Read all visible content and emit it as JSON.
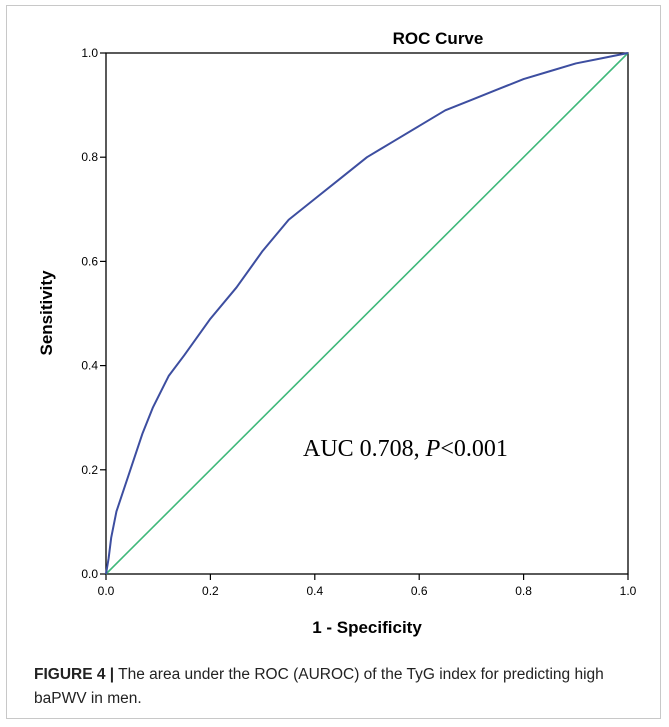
{
  "chart_data": {
    "type": "line",
    "title": "ROC Curve",
    "xlabel": "1 - Specificity",
    "ylabel": "Sensitivity",
    "xlim": [
      0.0,
      1.0
    ],
    "ylim": [
      0.0,
      1.0
    ],
    "x_ticks": [
      "0.0",
      "0.2",
      "0.4",
      "0.6",
      "0.8",
      "1.0"
    ],
    "y_ticks": [
      "0.0",
      "0.2",
      "0.4",
      "0.6",
      "0.8",
      "1.0"
    ],
    "grid": false,
    "annotation": {
      "prefix": "AUC  0.708, ",
      "p_symbol": "P",
      "suffix": "<0.001"
    },
    "series": [
      {
        "color": "#3d4ea0",
        "x": [
          0.0,
          0.005,
          0.01,
          0.02,
          0.03,
          0.05,
          0.07,
          0.09,
          0.12,
          0.15,
          0.2,
          0.25,
          0.3,
          0.35,
          0.4,
          0.45,
          0.5,
          0.55,
          0.6,
          0.65,
          0.7,
          0.75,
          0.8,
          0.85,
          0.9,
          0.95,
          1.0
        ],
        "y": [
          0.0,
          0.03,
          0.07,
          0.12,
          0.15,
          0.21,
          0.27,
          0.32,
          0.38,
          0.42,
          0.49,
          0.55,
          0.62,
          0.68,
          0.72,
          0.76,
          0.8,
          0.83,
          0.86,
          0.89,
          0.91,
          0.93,
          0.95,
          0.965,
          0.98,
          0.99,
          1.0
        ]
      },
      {
        "color": "#3fb87a",
        "x": [
          0.0,
          1.0
        ],
        "y": [
          0.0,
          1.0
        ]
      }
    ]
  },
  "caption": {
    "label": "FIGURE 4 |",
    "text": " The area under the ROC (AUROC) of the TyG index for predicting high baPWV in men."
  }
}
